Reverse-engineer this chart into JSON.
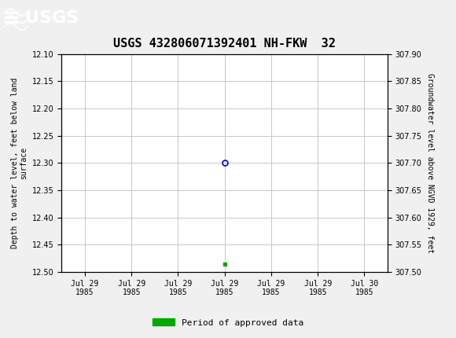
{
  "title": "USGS 432806071392401 NH-FKW  32",
  "ylabel_left": "Depth to water level, feet below land\nsurface",
  "ylabel_right": "Groundwater level above NGVD 1929, feet",
  "ylim_left": [
    12.5,
    12.1
  ],
  "ylim_right": [
    307.5,
    307.9
  ],
  "yticks_left": [
    12.1,
    12.15,
    12.2,
    12.25,
    12.3,
    12.35,
    12.4,
    12.45,
    12.5
  ],
  "yticks_right": [
    307.9,
    307.85,
    307.8,
    307.75,
    307.7,
    307.65,
    307.6,
    307.55,
    307.5
  ],
  "grid_color": "#c8c8c8",
  "background_color": "#f0f0f0",
  "plot_bg_color": "#ffffff",
  "header_color": "#1a6b3c",
  "data_point_y_open": 12.3,
  "data_point_y_green": 12.485,
  "data_point_x": 3,
  "open_marker_color": "#0000cc",
  "green_marker_color": "#00aa00",
  "legend_label": "Period of approved data",
  "legend_color": "#00aa00",
  "xtick_labels": [
    "Jul 29\n1985",
    "Jul 29\n1985",
    "Jul 29\n1985",
    "Jul 29\n1985",
    "Jul 29\n1985",
    "Jul 29\n1985",
    "Jul 30\n1985"
  ],
  "xtick_positions": [
    0,
    1,
    2,
    3,
    4,
    5,
    6
  ],
  "xmin": -0.5,
  "xmax": 6.5,
  "title_fontsize": 11,
  "axis_label_fontsize": 7,
  "tick_fontsize": 7,
  "legend_fontsize": 8
}
